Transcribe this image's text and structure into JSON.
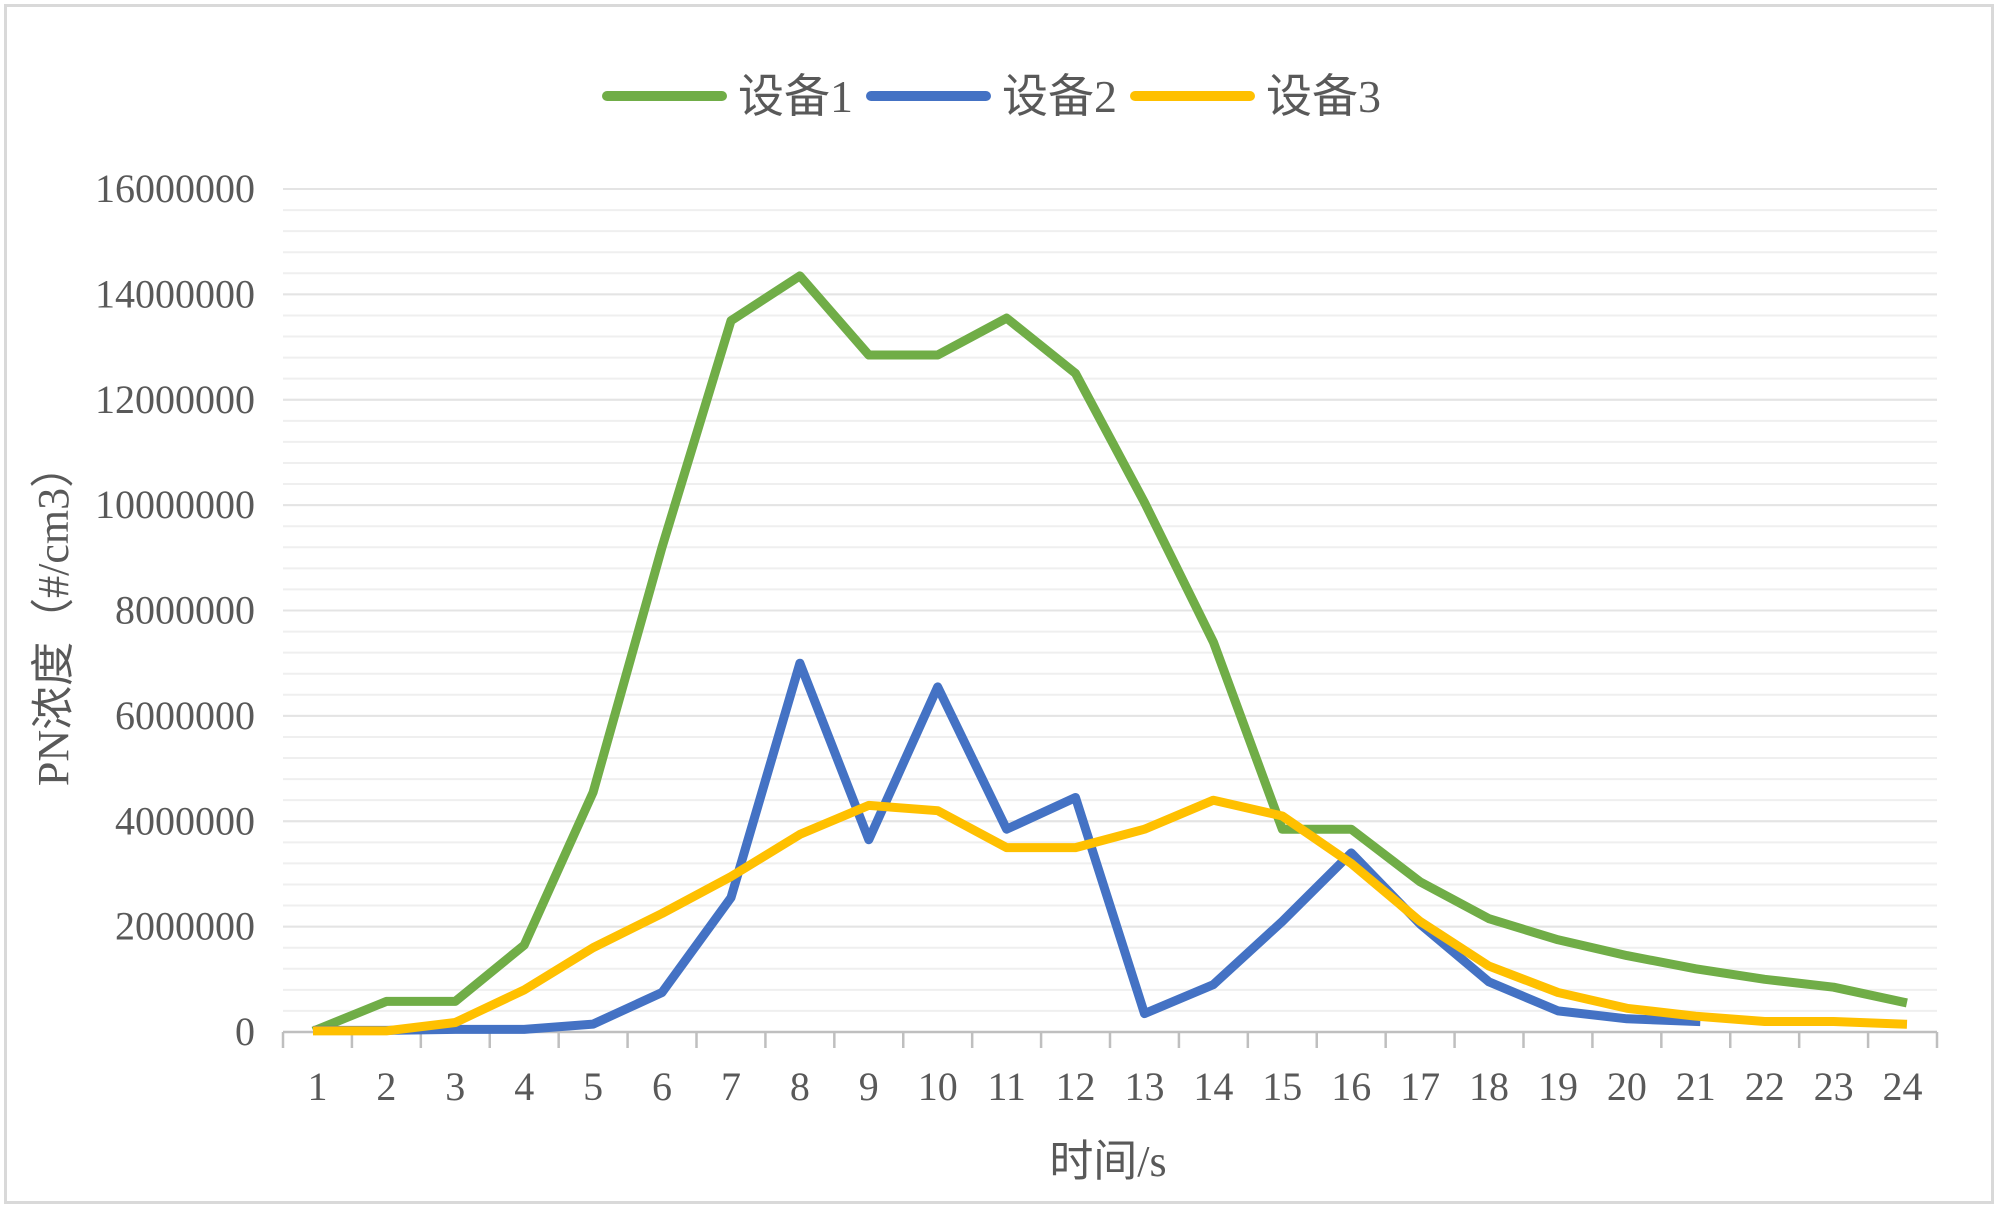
{
  "chart_data": {
    "type": "line",
    "title": "",
    "xlabel": "时间/s",
    "ylabel": "PN浓度（#/cm3）",
    "categories": [
      "1",
      "2",
      "3",
      "4",
      "5",
      "6",
      "7",
      "8",
      "9",
      "10",
      "11",
      "12",
      "13",
      "14",
      "15",
      "16",
      "17",
      "18",
      "19",
      "20",
      "21",
      "22",
      "23",
      "24"
    ],
    "ylim": [
      0,
      16000000
    ],
    "yticks": [
      0,
      2000000,
      4000000,
      6000000,
      8000000,
      10000000,
      12000000,
      14000000,
      16000000
    ],
    "ytick_labels": [
      "0",
      "2000000",
      "4000000",
      "6000000",
      "8000000",
      "10000000",
      "12000000",
      "14000000",
      "16000000"
    ],
    "grid": true,
    "legend_position": "top",
    "series": [
      {
        "name": "设备1",
        "color": "#70ad47",
        "values": [
          50000,
          580000,
          580000,
          1650000,
          4550000,
          9200000,
          13500000,
          14350000,
          12850000,
          12850000,
          13550000,
          12500000,
          10050000,
          7400000,
          3850000,
          3850000,
          2850000,
          2150000,
          1750000,
          1450000,
          1200000,
          1000000,
          850000,
          570000
        ]
      },
      {
        "name": "设备2",
        "color": "#4472c4",
        "values": [
          30000,
          30000,
          50000,
          50000,
          150000,
          750000,
          2550000,
          7000000,
          3650000,
          6550000,
          3850000,
          4450000,
          350000,
          900000,
          2100000,
          3400000,
          2050000,
          950000,
          400000,
          250000,
          200000,
          null,
          null,
          null
        ]
      },
      {
        "name": "设备3",
        "color": "#ffc000",
        "values": [
          20000,
          20000,
          180000,
          800000,
          1600000,
          2250000,
          2950000,
          3750000,
          4300000,
          4200000,
          3500000,
          3500000,
          3850000,
          4400000,
          4100000,
          3200000,
          2100000,
          1250000,
          750000,
          450000,
          300000,
          200000,
          200000,
          150000
        ]
      }
    ]
  }
}
